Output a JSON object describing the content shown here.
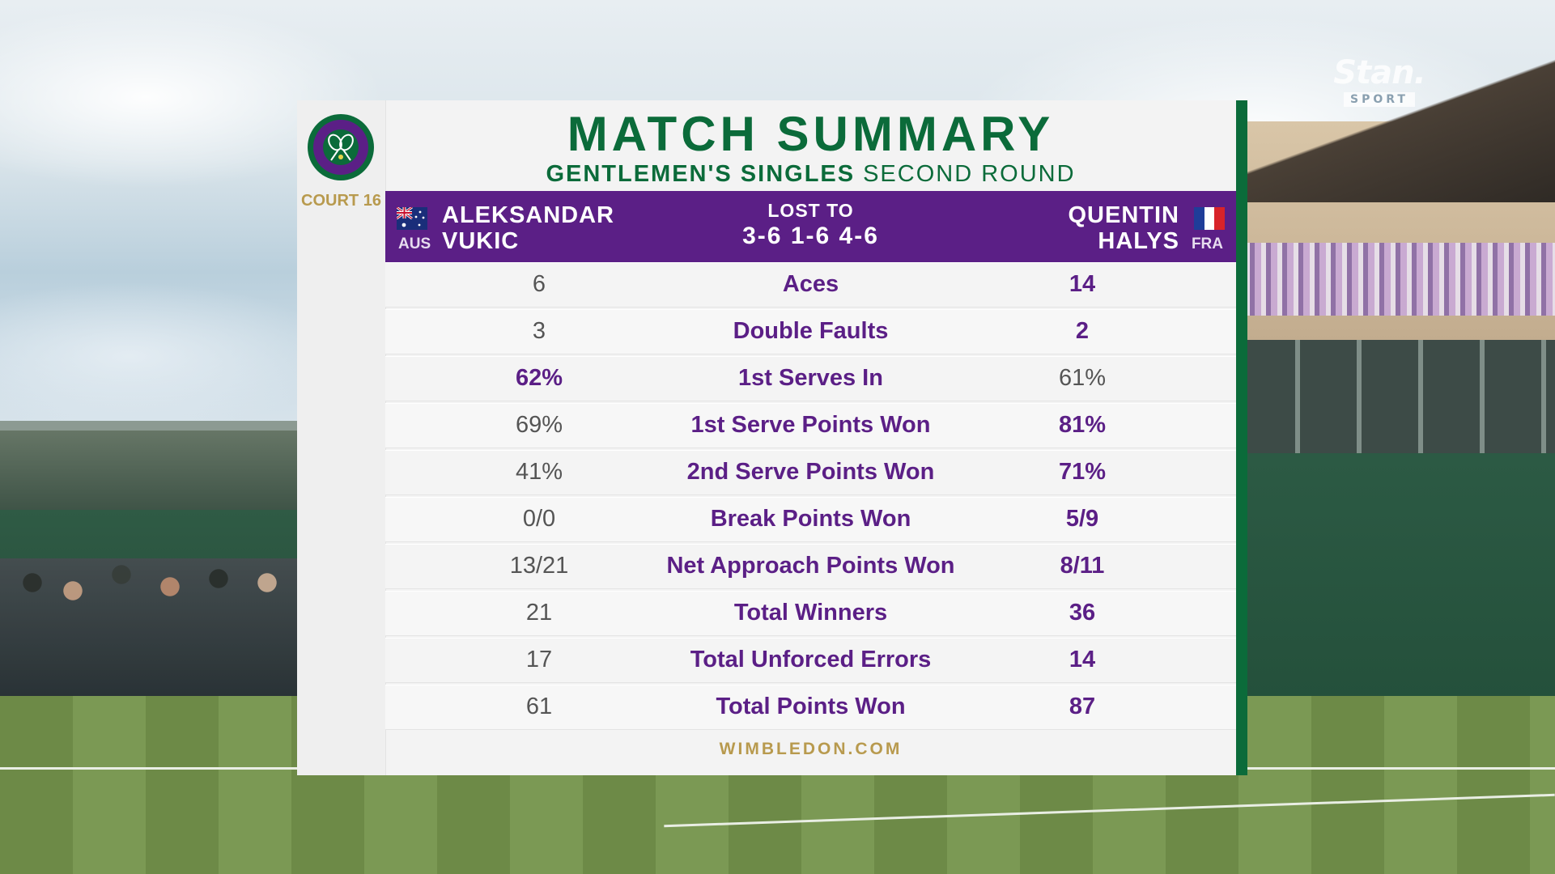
{
  "broadcaster": {
    "brand": "Stan.",
    "sub": "SPORT"
  },
  "colors": {
    "brand_green": "#0b6b3a",
    "brand_purple": "#5b1f86",
    "gold": "#b89a4e"
  },
  "header": {
    "logo_icon": "wimbledon-crest-icon",
    "court": "COURT 16",
    "title": "MATCH SUMMARY",
    "event": "GENTLEMEN'S SINGLES",
    "round": "SECOND ROUND"
  },
  "match": {
    "left_player": {
      "first": "ALEKSANDAR",
      "last": "VUKIC",
      "country": "AUS",
      "flag_icon": "australia-flag-icon"
    },
    "right_player": {
      "first": "QUENTIN",
      "last": "HALYS",
      "country": "FRA",
      "flag_icon": "france-flag-icon"
    },
    "result": "LOST TO",
    "score": "3-6 1-6 4-6"
  },
  "stats": [
    {
      "label": "Aces",
      "left": "6",
      "right": "14",
      "leader": "right"
    },
    {
      "label": "Double Faults",
      "left": "3",
      "right": "2",
      "leader": "right"
    },
    {
      "label": "1st Serves In",
      "left": "62%",
      "right": "61%",
      "leader": "left"
    },
    {
      "label": "1st Serve Points Won",
      "left": "69%",
      "right": "81%",
      "leader": "right"
    },
    {
      "label": "2nd Serve Points Won",
      "left": "41%",
      "right": "71%",
      "leader": "right"
    },
    {
      "label": "Break Points Won",
      "left": "0/0",
      "right": "5/9",
      "leader": "right"
    },
    {
      "label": "Net Approach Points Won",
      "left": "13/21",
      "right": "8/11",
      "leader": "right"
    },
    {
      "label": "Total Winners",
      "left": "21",
      "right": "36",
      "leader": "right"
    },
    {
      "label": "Total Unforced Errors",
      "left": "17",
      "right": "14",
      "leader": "right"
    },
    {
      "label": "Total Points Won",
      "left": "61",
      "right": "87",
      "leader": "right"
    }
  ],
  "footer": "WIMBLEDON.COM"
}
